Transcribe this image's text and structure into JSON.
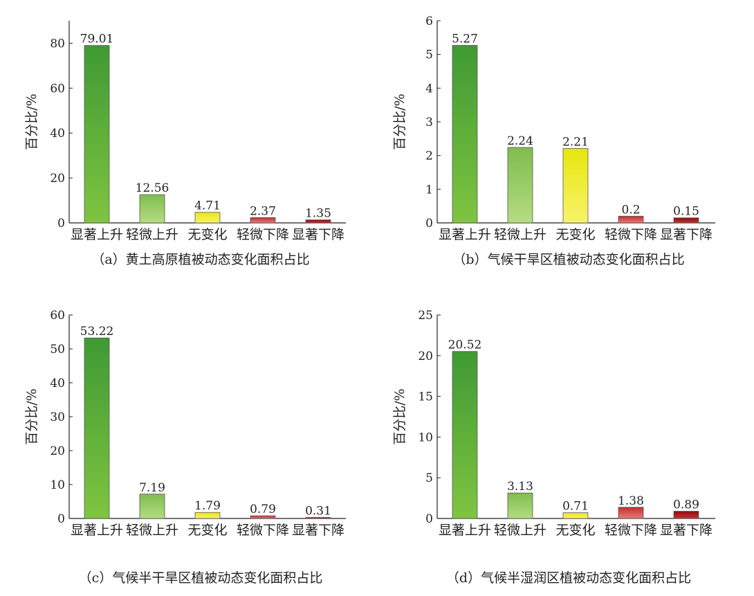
{
  "ylabel": "百分比/%",
  "categories": [
    "显著上升",
    "轻微上升",
    "无变化",
    "轻微下降",
    "显著下降"
  ],
  "colors": {
    "significant_increase_top": "#3f9a33",
    "significant_increase_bottom": "#7fc441",
    "slight_increase_top": "#7fbd4d",
    "slight_increase_bottom": "#b5dc82",
    "no_change_top": "#e8e60f",
    "no_change_bottom": "#f7f36a",
    "slight_decrease_top": "#c22f2f",
    "slight_decrease_bottom": "#e87a7a",
    "significant_decrease_top": "#8a0f0f",
    "significant_decrease_bottom": "#c73232"
  },
  "chart_data": [
    {
      "type": "bar",
      "caption": "（a）黄土高原植被动态变化面积占比",
      "categories": [
        "显著上升",
        "轻微上升",
        "无变化",
        "轻微下降",
        "显著下降"
      ],
      "values": [
        79.01,
        12.56,
        4.71,
        2.37,
        1.35
      ],
      "value_labels": [
        "79.01",
        "12.56",
        "4.71",
        "2.37",
        "1.35"
      ],
      "ylabel": "百分比/%",
      "ylim": [
        0,
        90
      ],
      "yticks": [
        "0",
        "20",
        "40",
        "60",
        "80"
      ],
      "grid": false
    },
    {
      "type": "bar",
      "caption": "（b）气候干旱区植被动态变化面积占比",
      "categories": [
        "显著上升",
        "轻微上升",
        "无变化",
        "轻微下降",
        "显著下降"
      ],
      "values": [
        5.27,
        2.24,
        2.21,
        0.2,
        0.15
      ],
      "value_labels": [
        "5.27",
        "2.24",
        "2.21",
        "0.2",
        "0.15"
      ],
      "ylabel": "百分比/%",
      "ylim": [
        0,
        6
      ],
      "yticks": [
        "0",
        "1",
        "2",
        "3",
        "4",
        "5",
        "6"
      ],
      "grid": false
    },
    {
      "type": "bar",
      "caption": "（c）气候半干旱区植被动态变化面积占比",
      "categories": [
        "显著上升",
        "轻微上升",
        "无变化",
        "轻微下降",
        "显著下降"
      ],
      "values": [
        53.22,
        7.19,
        1.79,
        0.79,
        0.31
      ],
      "value_labels": [
        "53.22",
        "7.19",
        "1.79",
        "0.79",
        "0.31"
      ],
      "ylabel": "百分比/%",
      "ylim": [
        0,
        60
      ],
      "yticks": [
        "0",
        "10",
        "20",
        "30",
        "40",
        "50",
        "60"
      ],
      "grid": false
    },
    {
      "type": "bar",
      "caption": "（d）气候半湿润区植被动态变化面积占比",
      "categories": [
        "显著上升",
        "轻微上升",
        "无变化",
        "轻微下降",
        "显著下降"
      ],
      "values": [
        20.52,
        3.13,
        0.71,
        1.38,
        0.89
      ],
      "value_labels": [
        "20.52",
        "3.13",
        "0.71",
        "1.38",
        "0.89"
      ],
      "ylabel": "百分比/%",
      "ylim": [
        0,
        25
      ],
      "yticks": [
        "0",
        "5",
        "10",
        "15",
        "20",
        "25"
      ],
      "grid": false
    }
  ]
}
